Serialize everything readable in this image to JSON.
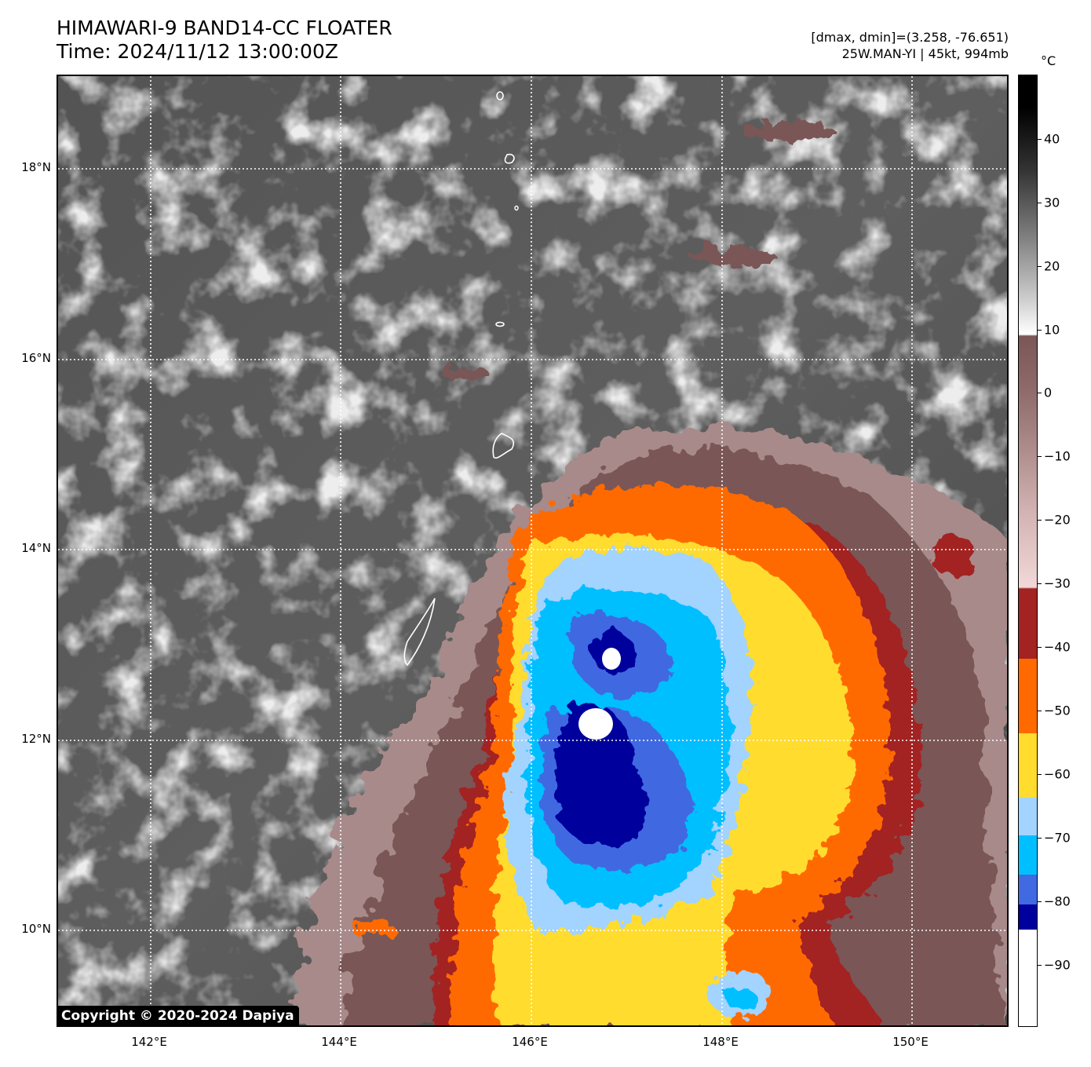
{
  "header": {
    "title": "HIMAWARI-9 BAND14-CC FLOATER",
    "time": "Time: 2024/11/12 13:00:00Z",
    "range_info": "[dmax, dmin]=(3.258, -76.651)",
    "storm_info": "25W.MAN-YI | 45kt, 994mb"
  },
  "map": {
    "lat_labels": [
      "18°N",
      "16°N",
      "14°N",
      "12°N",
      "10°N"
    ],
    "lon_labels": [
      "142°E",
      "144°E",
      "146°E",
      "148°E",
      "150°E"
    ],
    "gridlines": "dotted white",
    "copyright": "Copyright © 2020-2024 Dapiya"
  },
  "colorbar": {
    "unit": "°C",
    "tick_labels": [
      "40",
      "30",
      "20",
      "10",
      "0",
      "−10",
      "−20",
      "−30",
      "−40",
      "−50",
      "−60",
      "−70",
      "−80",
      "−90"
    ],
    "colors": {
      "above_10": "grayscale",
      "10_to_-30": "#7a5656",
      "-30_to_-40": "#a32222",
      "-40_to_-50": "#ff6a00",
      "-50_to_-60": "#ffdc2e",
      "-60_to_-70": "#a3d3ff",
      "-70_to_-76": "#00bfff",
      "-76_to_-80": "#4169e1",
      "-80_to_-84": "#00009c",
      "below_-84": "#ffffff"
    }
  }
}
